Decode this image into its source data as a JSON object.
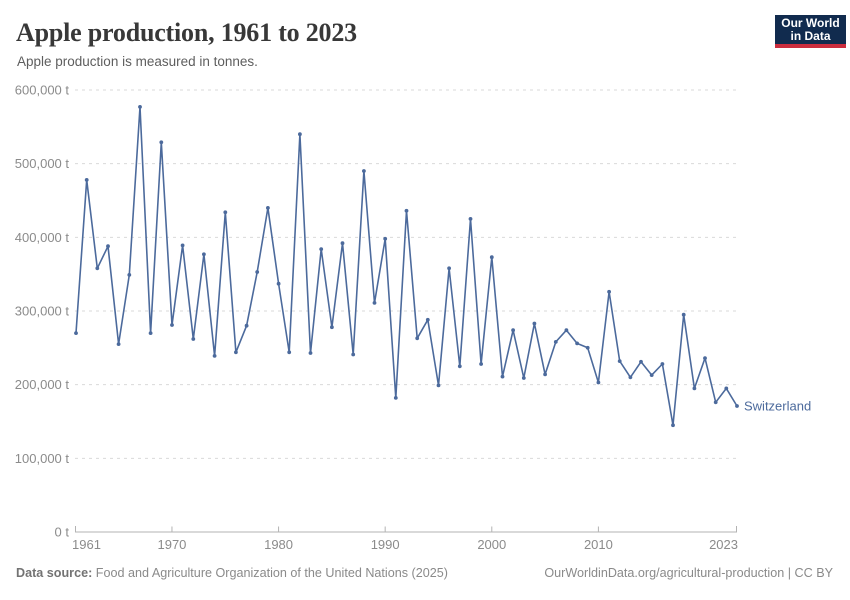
{
  "header": {
    "title": "Apple production, 1961 to 2023",
    "subtitle": "Apple production is measured in tonnes.",
    "logo": {
      "line1": "Our World",
      "line2": "in Data"
    }
  },
  "footer": {
    "source_label": "Data source:",
    "source_text": " Food and Agriculture Organization of the United Nations (2025)",
    "credit_link": "OurWorldinData.org/agricultural-production",
    "credit_suffix": " | CC BY"
  },
  "colors": {
    "line": "#4C6A9C",
    "logo_navy": "#112B4E",
    "logo_red": "#CB2D3E",
    "grid": "#D9D9D9",
    "axis": "#B3B3B3",
    "tick_text": "#8B8B8B"
  },
  "chart_data": {
    "type": "line",
    "title": "Apple production, 1961 to 2023",
    "subtitle": "Apple production is measured in tonnes.",
    "unit": "tonnes",
    "xlim": [
      1961,
      2023
    ],
    "ylim": [
      0,
      600000
    ],
    "grid": "horizontal dashed",
    "legend_position": "end-of-line label",
    "xticks": [
      1961,
      1970,
      1980,
      1990,
      2000,
      2010,
      2023
    ],
    "yticks": [
      {
        "value": 0,
        "label": "0 t"
      },
      {
        "value": 100000,
        "label": "100,000 t"
      },
      {
        "value": 200000,
        "label": "200,000 t"
      },
      {
        "value": 300000,
        "label": "300,000 t"
      },
      {
        "value": 400000,
        "label": "400,000 t"
      },
      {
        "value": 500000,
        "label": "500,000 t"
      },
      {
        "value": 600000,
        "label": "600,000 t"
      }
    ],
    "series": [
      {
        "name": "Switzerland",
        "color": "#4C6A9C",
        "x": [
          1961,
          1962,
          1963,
          1964,
          1965,
          1966,
          1967,
          1968,
          1969,
          1970,
          1971,
          1972,
          1973,
          1974,
          1975,
          1976,
          1977,
          1978,
          1979,
          1980,
          1981,
          1982,
          1983,
          1984,
          1985,
          1986,
          1987,
          1988,
          1989,
          1990,
          1991,
          1992,
          1993,
          1994,
          1995,
          1996,
          1997,
          1998,
          1999,
          2000,
          2001,
          2002,
          2003,
          2004,
          2005,
          2006,
          2007,
          2008,
          2009,
          2010,
          2011,
          2012,
          2013,
          2014,
          2015,
          2016,
          2017,
          2018,
          2019,
          2020,
          2021,
          2022,
          2023
        ],
        "values": [
          270000,
          478000,
          358000,
          388000,
          255000,
          349000,
          577000,
          270000,
          529000,
          281000,
          389000,
          262000,
          377000,
          239000,
          434000,
          244000,
          280000,
          353000,
          440000,
          337000,
          244000,
          540000,
          243000,
          384000,
          278000,
          392000,
          241000,
          490000,
          311000,
          398000,
          182000,
          436000,
          263000,
          288000,
          199000,
          358000,
          225000,
          425000,
          228000,
          373000,
          211000,
          274000,
          209000,
          283000,
          214000,
          258000,
          274000,
          256000,
          250000,
          203000,
          326000,
          232000,
          210000,
          231000,
          213000,
          228000,
          145000,
          295000,
          195000,
          236000,
          176000,
          195000,
          171000
        ]
      }
    ]
  }
}
